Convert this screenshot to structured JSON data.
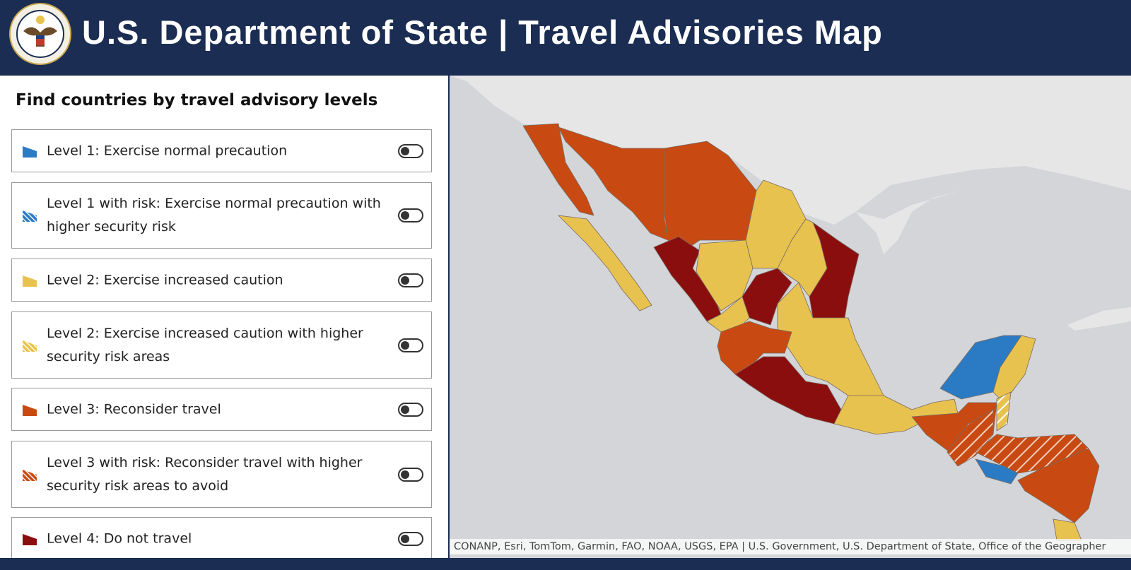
{
  "header": {
    "title": "U.S. Department of State | Travel Advisories Map"
  },
  "panel": {
    "title": "Find countries by travel advisory levels",
    "levels": [
      {
        "label": "Level 1: Exercise normal precaution"
      },
      {
        "label": "Level 1 with risk: Exercise normal precaution with higher security risk"
      },
      {
        "label": "Level 2: Exercise increased caution"
      },
      {
        "label": "Level 2: Exercise increased caution with higher security risk areas"
      },
      {
        "label": "Level 3: Reconsider travel"
      },
      {
        "label": "Level 3 with risk: Reconsider travel with higher security risk areas to avoid"
      },
      {
        "label": "Level 4: Do not travel"
      }
    ]
  },
  "map": {
    "attribution": "CONANP, Esri, TomTom, Garmin, FAO, NOAA, USGS, EPA | U.S. Government, U.S. Department of State, Office of the Geographer"
  }
}
